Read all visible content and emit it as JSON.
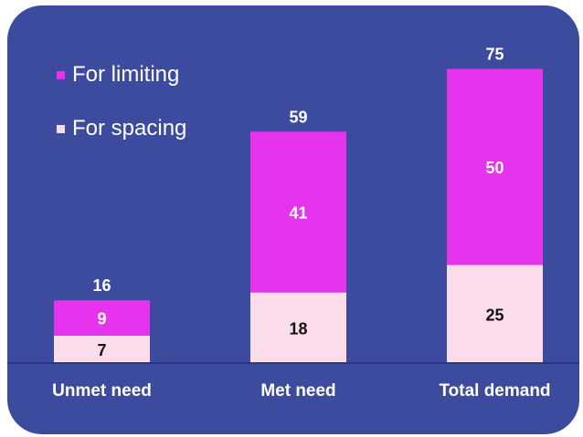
{
  "colors": {
    "panel": "#3d4b9e",
    "limiting": "#e633ee",
    "spacing": "#fbdcea",
    "axis": "#2a3680",
    "text_light": "#ffffff",
    "text_dark": "#111111"
  },
  "legend": {
    "limiting_label": "For limiting",
    "spacing_label": "For spacing"
  },
  "chart_data": {
    "type": "bar",
    "stacked": true,
    "categories": [
      "Unmet need",
      "Met need",
      "Total demand"
    ],
    "series": [
      {
        "name": "For spacing",
        "values": [
          7,
          18,
          25
        ]
      },
      {
        "name": "For limiting",
        "values": [
          9,
          41,
          50
        ]
      }
    ],
    "totals": [
      16,
      59,
      75
    ],
    "title": "",
    "xlabel": "",
    "ylabel": "",
    "ylim": [
      0,
      75
    ],
    "grid": false,
    "legend_position": "top-left"
  }
}
